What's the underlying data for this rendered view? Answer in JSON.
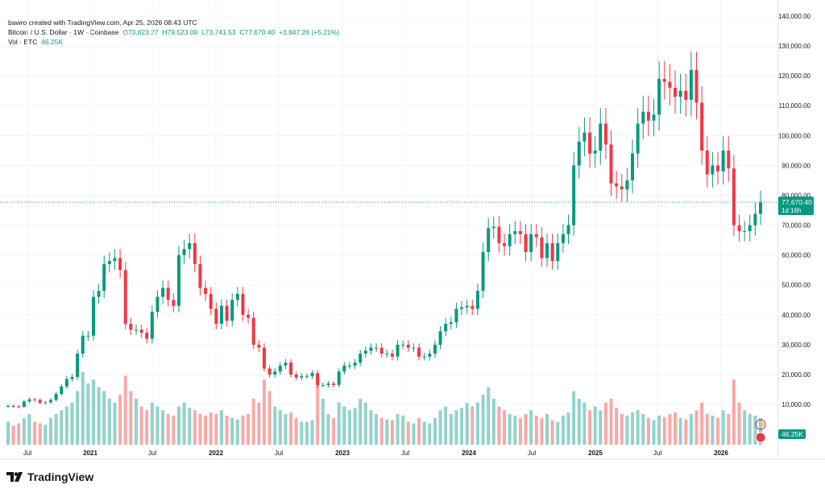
{
  "header": {
    "line1": "bawro created with TradingView.com, Apr 25, 2026 08:43 UTC",
    "symbol": "Bitcoin / U.S. Dollar · 1W · Coinbase",
    "open": "O73,823.27",
    "high": "H79,523.00",
    "low": "L73,741.53",
    "close": "C77,670.40",
    "change": "+3,847.26 (+5.21%)",
    "vol_label": "Vol · BTC",
    "vol_value": "46.25K"
  },
  "price_badge": {
    "price": "77,670.40",
    "countdown": "1d 16h"
  },
  "vol_badge": "46.25K",
  "logo": "TradingView",
  "colors": {
    "up": "#089981",
    "down": "#f23645",
    "up_vol": "#92d2cc",
    "down_vol": "#f7a9a7"
  },
  "chart_data": {
    "type": "candlestick",
    "ylabel": "",
    "xlabel": "",
    "ylim": [
      0,
      140000
    ],
    "y_ticks": [
      "140,000.00",
      "130,000.00",
      "120,000.00",
      "110,000.00",
      "100,000.00",
      "90,000.00",
      "80,000.00",
      "70,000.00",
      "60,000.00",
      "50,000.00",
      "40,000.00",
      "30,000.00",
      "20,000.00",
      "10,000.00"
    ],
    "x_ticks": [
      "Jul",
      "2021",
      "Jul",
      "2022",
      "Jul",
      "2023",
      "Jul",
      "2024",
      "Jul",
      "2025",
      "Jul",
      "2026"
    ],
    "x_range": [
      "2020-06",
      "2026-04"
    ],
    "last_price": 77670.4,
    "closes_k": [
      9.5,
      9.3,
      9.2,
      11,
      11.7,
      11.5,
      10.5,
      10.7,
      11.5,
      13.5,
      16,
      18.5,
      19.2,
      27,
      33,
      33,
      46,
      48,
      57,
      58,
      59,
      55,
      37,
      35,
      35,
      34,
      32,
      41,
      46,
      49,
      45,
      43,
      60,
      62,
      64,
      57,
      49,
      47,
      42,
      37,
      43,
      38,
      45,
      47,
      40,
      39,
      30,
      29,
      22,
      20,
      21,
      23,
      24,
      20,
      19,
      19.5,
      19.5,
      20.5,
      16.5,
      16.5,
      17,
      16.5,
      21,
      23,
      23,
      24,
      27,
      28,
      29,
      29,
      27,
      27,
      26,
      30,
      30,
      29,
      29,
      26,
      26,
      27,
      30,
      34.5,
      37,
      37.5,
      42,
      42.5,
      43,
      42,
      48,
      61,
      69,
      69.5,
      64,
      63,
      67,
      68,
      67,
      61,
      67,
      66,
      59,
      64,
      58,
      64,
      67,
      70,
      90,
      98,
      101,
      94,
      95,
      104,
      97,
      84,
      83,
      82,
      85,
      94,
      104,
      108,
      105,
      107,
      119,
      118,
      116,
      113,
      115,
      112,
      122,
      111,
      95,
      87,
      90,
      88,
      95,
      89,
      70,
      68,
      68,
      70,
      73.8,
      77.67
    ],
    "volume_rel": [
      30,
      25,
      28,
      35,
      40,
      30,
      28,
      26,
      35,
      40,
      45,
      50,
      55,
      70,
      95,
      80,
      85,
      75,
      70,
      60,
      55,
      65,
      90,
      70,
      60,
      50,
      45,
      55,
      50,
      45,
      40,
      38,
      50,
      55,
      48,
      45,
      40,
      38,
      42,
      40,
      45,
      38,
      35,
      33,
      38,
      40,
      60,
      55,
      85,
      70,
      50,
      45,
      40,
      42,
      35,
      30,
      30,
      32,
      90,
      60,
      40,
      35,
      55,
      50,
      45,
      48,
      60,
      55,
      45,
      40,
      35,
      33,
      32,
      40,
      38,
      30,
      28,
      35,
      30,
      28,
      35,
      45,
      50,
      40,
      45,
      48,
      55,
      50,
      55,
      65,
      75,
      60,
      50,
      45,
      40,
      38,
      35,
      40,
      45,
      38,
      35,
      40,
      32,
      30,
      38,
      42,
      70,
      60,
      55,
      45,
      50,
      45,
      55,
      60,
      48,
      40,
      38,
      42,
      45,
      40,
      35,
      32,
      38,
      36,
      40,
      42,
      35,
      33,
      40,
      45,
      55,
      40,
      38,
      35,
      45,
      40,
      85,
      55,
      45,
      40,
      38,
      35
    ]
  }
}
